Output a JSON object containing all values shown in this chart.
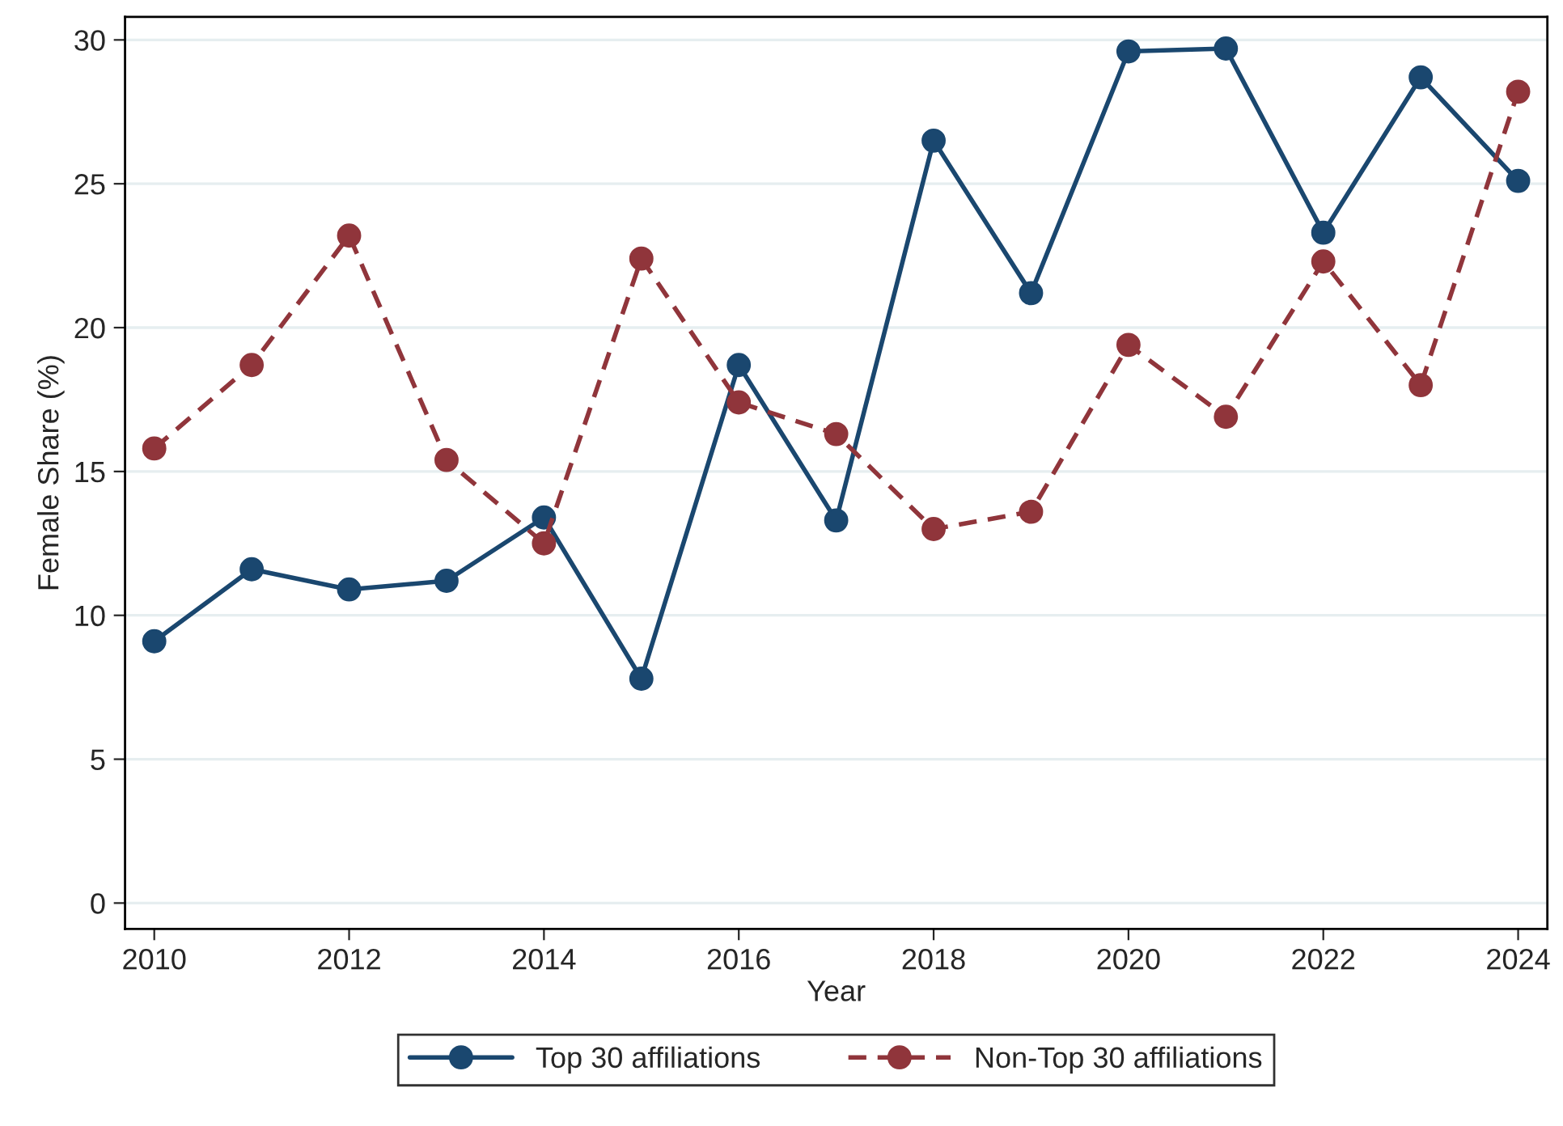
{
  "chart_data": {
    "type": "line",
    "xlabel": "Year",
    "ylabel": "Female Share (%)",
    "x": [
      2010,
      2011,
      2012,
      2013,
      2014,
      2015,
      2016,
      2017,
      2018,
      2019,
      2020,
      2021,
      2022,
      2023,
      2024
    ],
    "series": [
      {
        "name": "Top 30 affiliations",
        "color": "#1a476f",
        "line_style": "solid",
        "values": [
          9.1,
          11.6,
          10.9,
          11.2,
          13.4,
          7.8,
          18.7,
          13.3,
          26.5,
          21.2,
          29.6,
          29.7,
          23.3,
          28.7,
          25.1
        ]
      },
      {
        "name": "Non-Top 30 affiliations",
        "color": "#90353b",
        "line_style": "dashed",
        "values": [
          15.8,
          18.7,
          23.2,
          15.4,
          12.5,
          22.4,
          17.4,
          16.3,
          13.0,
          13.6,
          19.4,
          16.9,
          22.3,
          18.0,
          28.2
        ]
      }
    ],
    "marker": "circle",
    "xlim": [
      2009.7,
      2024.3
    ],
    "ylim": [
      -0.9,
      30.8
    ],
    "xticks": [
      2010,
      2012,
      2014,
      2016,
      2018,
      2020,
      2022,
      2024
    ],
    "yticks": [
      0,
      5,
      10,
      15,
      20,
      25,
      30
    ],
    "grid": "y",
    "legend": "bottom"
  }
}
